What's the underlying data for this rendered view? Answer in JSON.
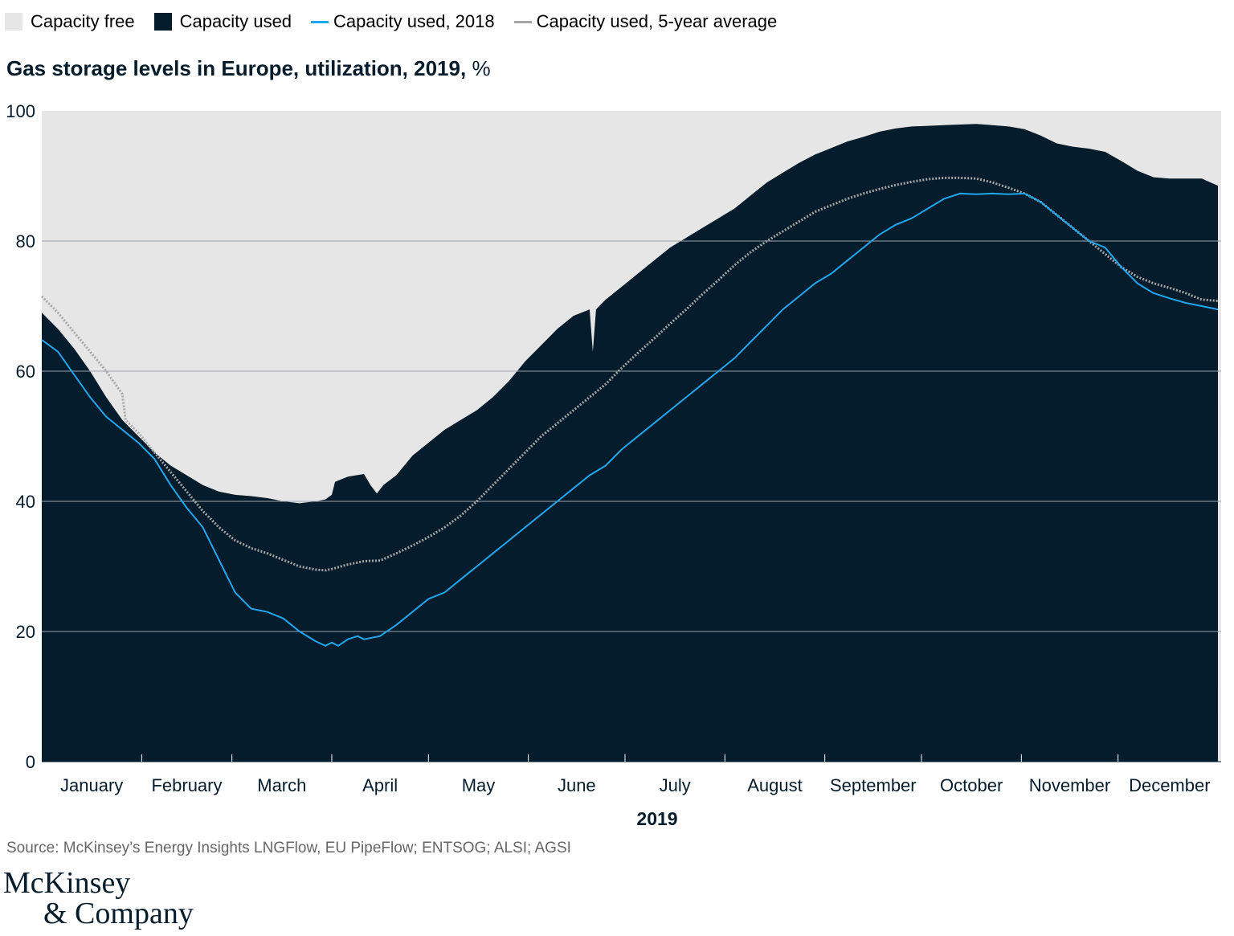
{
  "legend": [
    {
      "label": "Capacity free",
      "kind": "box",
      "color": "#e6e6e6"
    },
    {
      "label": "Capacity used",
      "kind": "box",
      "color": "#051c2c"
    },
    {
      "label": "Capacity used, 2018",
      "kind": "line",
      "color": "#1ea7f2"
    },
    {
      "label": "Capacity used, 5-year average",
      "kind": "line",
      "color": "#a6a6a6"
    }
  ],
  "title": {
    "main": "Gas storage levels in Europe, utilization, 2019,",
    "unit": "%"
  },
  "source": "Source: McKinsey’s Energy Insights LNGFlow, EU PipeFlow; ENTSOG; ALSI; AGSI",
  "logo": {
    "line1": "McKinsey",
    "line2": "& Company"
  },
  "chart_data": {
    "type": "area",
    "title": "Gas storage levels in Europe, utilization, 2019, %",
    "xlabel": "2019",
    "ylabel": "",
    "ylim": [
      0,
      100
    ],
    "yticks": [
      0,
      20,
      40,
      60,
      80,
      100
    ],
    "xlim": [
      0,
      366
    ],
    "grid": true,
    "legend_position": "top-left",
    "months": [
      {
        "label": "January",
        "start": 0,
        "end": 31
      },
      {
        "label": "February",
        "start": 31,
        "end": 59
      },
      {
        "label": "March",
        "start": 59,
        "end": 90
      },
      {
        "label": "April",
        "start": 90,
        "end": 120
      },
      {
        "label": "May",
        "start": 120,
        "end": 151
      },
      {
        "label": "June",
        "start": 151,
        "end": 181
      },
      {
        "label": "July",
        "start": 181,
        "end": 212
      },
      {
        "label": "August",
        "start": 212,
        "end": 243
      },
      {
        "label": "September",
        "start": 243,
        "end": 273
      },
      {
        "label": "October",
        "start": 273,
        "end": 304
      },
      {
        "label": "November",
        "start": 304,
        "end": 334
      },
      {
        "label": "December",
        "start": 334,
        "end": 366
      }
    ],
    "series": [
      {
        "name": "Capacity used",
        "color": "#051c2c",
        "points": [
          [
            0,
            69
          ],
          [
            5,
            66.5
          ],
          [
            10,
            63.5
          ],
          [
            15,
            60
          ],
          [
            20,
            56
          ],
          [
            25,
            52.5
          ],
          [
            30,
            50
          ],
          [
            35,
            47.5
          ],
          [
            40,
            45.5
          ],
          [
            45,
            44
          ],
          [
            50,
            42.5
          ],
          [
            55,
            41.5
          ],
          [
            60,
            41
          ],
          [
            65,
            40.8
          ],
          [
            70,
            40.5
          ],
          [
            75,
            40
          ],
          [
            80,
            39.7
          ],
          [
            85,
            40
          ],
          [
            88,
            40.3
          ],
          [
            90,
            41
          ],
          [
            91,
            43
          ],
          [
            95,
            43.8
          ],
          [
            100,
            44.2
          ],
          [
            102,
            42.5
          ],
          [
            104,
            41.2
          ],
          [
            106,
            42.5
          ],
          [
            110,
            44
          ],
          [
            115,
            47
          ],
          [
            120,
            49
          ],
          [
            125,
            51
          ],
          [
            130,
            52.5
          ],
          [
            135,
            54
          ],
          [
            140,
            56
          ],
          [
            145,
            58.5
          ],
          [
            150,
            61.5
          ],
          [
            155,
            64
          ],
          [
            160,
            66.5
          ],
          [
            165,
            68.5
          ],
          [
            170,
            69.5
          ],
          [
            171,
            63
          ],
          [
            172,
            69.5
          ],
          [
            175,
            71
          ],
          [
            180,
            73
          ],
          [
            185,
            75
          ],
          [
            190,
            77
          ],
          [
            195,
            79
          ],
          [
            200,
            80.5
          ],
          [
            205,
            82
          ],
          [
            210,
            83.5
          ],
          [
            215,
            85
          ],
          [
            220,
            87
          ],
          [
            225,
            89
          ],
          [
            230,
            90.5
          ],
          [
            235,
            92
          ],
          [
            240,
            93.3
          ],
          [
            245,
            94.3
          ],
          [
            250,
            95.3
          ],
          [
            255,
            96
          ],
          [
            260,
            96.8
          ],
          [
            265,
            97.3
          ],
          [
            270,
            97.6
          ],
          [
            275,
            97.7
          ],
          [
            280,
            97.8
          ],
          [
            285,
            97.9
          ],
          [
            290,
            98
          ],
          [
            295,
            97.8
          ],
          [
            300,
            97.6
          ],
          [
            305,
            97.2
          ],
          [
            310,
            96.2
          ],
          [
            315,
            95
          ],
          [
            320,
            94.5
          ],
          [
            325,
            94.2
          ],
          [
            330,
            93.7
          ],
          [
            335,
            92.3
          ],
          [
            340,
            90.8
          ],
          [
            345,
            89.8
          ],
          [
            350,
            89.6
          ],
          [
            355,
            89.6
          ],
          [
            360,
            89.6
          ],
          [
            365,
            88.5
          ]
        ]
      },
      {
        "name": "Capacity used, 2018",
        "color": "#1ea7f2",
        "points": [
          [
            0,
            64.8
          ],
          [
            5,
            63
          ],
          [
            10,
            59.5
          ],
          [
            15,
            56
          ],
          [
            20,
            53
          ],
          [
            25,
            51
          ],
          [
            30,
            49
          ],
          [
            35,
            46.5
          ],
          [
            40,
            42.5
          ],
          [
            45,
            39
          ],
          [
            50,
            36
          ],
          [
            55,
            31
          ],
          [
            60,
            26
          ],
          [
            65,
            23.5
          ],
          [
            70,
            23
          ],
          [
            75,
            22
          ],
          [
            80,
            20
          ],
          [
            85,
            18.5
          ],
          [
            88,
            17.8
          ],
          [
            90,
            18.3
          ],
          [
            92,
            17.8
          ],
          [
            95,
            18.8
          ],
          [
            98,
            19.3
          ],
          [
            100,
            18.8
          ],
          [
            105,
            19.3
          ],
          [
            110,
            21
          ],
          [
            115,
            23
          ],
          [
            120,
            25
          ],
          [
            125,
            26
          ],
          [
            130,
            28
          ],
          [
            135,
            30
          ],
          [
            140,
            32
          ],
          [
            145,
            34
          ],
          [
            150,
            36
          ],
          [
            155,
            38
          ],
          [
            160,
            40
          ],
          [
            165,
            42
          ],
          [
            170,
            44
          ],
          [
            175,
            45.5
          ],
          [
            180,
            48
          ],
          [
            185,
            50
          ],
          [
            190,
            52
          ],
          [
            195,
            54
          ],
          [
            200,
            56
          ],
          [
            205,
            58
          ],
          [
            210,
            60
          ],
          [
            215,
            62
          ],
          [
            220,
            64.5
          ],
          [
            225,
            67
          ],
          [
            230,
            69.5
          ],
          [
            235,
            71.5
          ],
          [
            240,
            73.5
          ],
          [
            245,
            75
          ],
          [
            250,
            77
          ],
          [
            255,
            79
          ],
          [
            260,
            81
          ],
          [
            265,
            82.5
          ],
          [
            270,
            83.5
          ],
          [
            275,
            85
          ],
          [
            280,
            86.5
          ],
          [
            285,
            87.3
          ],
          [
            290,
            87.2
          ],
          [
            295,
            87.3
          ],
          [
            300,
            87.2
          ],
          [
            305,
            87.3
          ],
          [
            310,
            86
          ],
          [
            315,
            84
          ],
          [
            320,
            82
          ],
          [
            325,
            80
          ],
          [
            330,
            79
          ],
          [
            335,
            76
          ],
          [
            340,
            73.5
          ],
          [
            345,
            72
          ],
          [
            350,
            71.2
          ],
          [
            355,
            70.5
          ],
          [
            360,
            70
          ],
          [
            365,
            69.5
          ]
        ]
      },
      {
        "name": "Capacity used, 5-year average",
        "color": "#a6a6a6",
        "points": [
          [
            0,
            71.5
          ],
          [
            5,
            69
          ],
          [
            10,
            66
          ],
          [
            15,
            63
          ],
          [
            20,
            60
          ],
          [
            25,
            56.5
          ],
          [
            26,
            52.5
          ],
          [
            30,
            50.5
          ],
          [
            35,
            47.5
          ],
          [
            40,
            44.5
          ],
          [
            45,
            41.5
          ],
          [
            50,
            38.5
          ],
          [
            55,
            36
          ],
          [
            60,
            34
          ],
          [
            65,
            32.8
          ],
          [
            70,
            32
          ],
          [
            75,
            31
          ],
          [
            80,
            30
          ],
          [
            85,
            29.5
          ],
          [
            88,
            29.4
          ],
          [
            90,
            29.6
          ],
          [
            95,
            30.3
          ],
          [
            100,
            30.8
          ],
          [
            105,
            30.9
          ],
          [
            110,
            32
          ],
          [
            115,
            33.2
          ],
          [
            120,
            34.5
          ],
          [
            125,
            36
          ],
          [
            130,
            37.8
          ],
          [
            135,
            40
          ],
          [
            140,
            42.5
          ],
          [
            145,
            45
          ],
          [
            150,
            47.5
          ],
          [
            155,
            50
          ],
          [
            160,
            52
          ],
          [
            165,
            54
          ],
          [
            170,
            56
          ],
          [
            175,
            58
          ],
          [
            180,
            60.5
          ],
          [
            185,
            62.8
          ],
          [
            190,
            65
          ],
          [
            195,
            67.3
          ],
          [
            200,
            69.5
          ],
          [
            205,
            71.8
          ],
          [
            210,
            74
          ],
          [
            215,
            76.3
          ],
          [
            220,
            78.3
          ],
          [
            225,
            80
          ],
          [
            230,
            81.5
          ],
          [
            235,
            83
          ],
          [
            240,
            84.5
          ],
          [
            245,
            85.5
          ],
          [
            250,
            86.5
          ],
          [
            255,
            87.3
          ],
          [
            260,
            88
          ],
          [
            265,
            88.6
          ],
          [
            270,
            89.1
          ],
          [
            275,
            89.5
          ],
          [
            280,
            89.7
          ],
          [
            285,
            89.7
          ],
          [
            290,
            89.6
          ],
          [
            295,
            89
          ],
          [
            300,
            88.2
          ],
          [
            305,
            87.3
          ],
          [
            310,
            86
          ],
          [
            315,
            84
          ],
          [
            320,
            82
          ],
          [
            325,
            80
          ],
          [
            330,
            78
          ],
          [
            335,
            76
          ],
          [
            340,
            74.5
          ],
          [
            345,
            73.5
          ],
          [
            350,
            72.8
          ],
          [
            355,
            72
          ],
          [
            360,
            71
          ],
          [
            365,
            70.8
          ]
        ]
      }
    ],
    "capacity_free": {
      "name": "Capacity free",
      "color": "#e6e6e6",
      "upper": 100
    }
  }
}
